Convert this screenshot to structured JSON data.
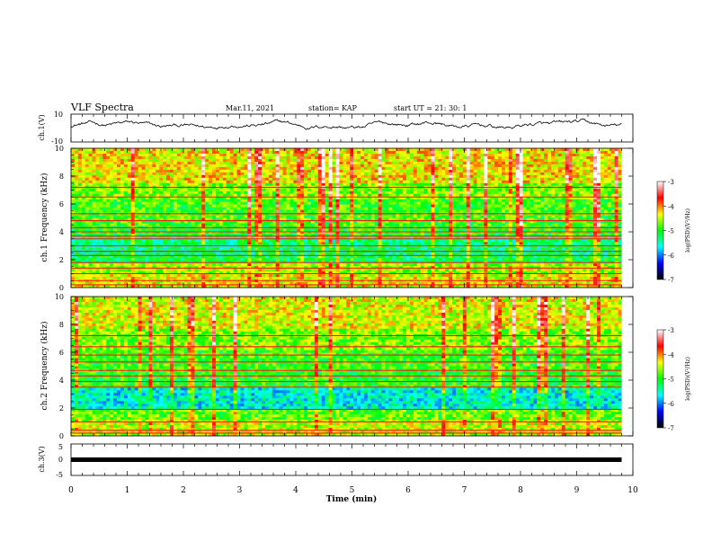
{
  "header": {
    "title": "VLF Spectra",
    "date": "Mar.11, 2021",
    "station": "station= KAP",
    "start": "start  UT =   21: 30: 1"
  },
  "colorbar": {
    "label": "log(PSD)(V²/Hz)",
    "ticks": [
      "-3",
      "-4",
      "-5",
      "-6",
      "-7"
    ],
    "stops": [
      "#ffffff",
      "#ff0000",
      "#ffff00",
      "#00ff00",
      "#00ffff",
      "#0000ff",
      "#000000"
    ]
  },
  "chart_data": [
    {
      "type": "line",
      "name": "ch1-waveform",
      "ylabel": "ch.1(V)",
      "ylim": [
        -10,
        10
      ],
      "ytick_labels": [
        "10",
        "-10"
      ],
      "xlim": [
        0,
        10
      ],
      "x_end": 9.8,
      "color": "#000000",
      "y_mean": 2,
      "y_swing": 3
    },
    {
      "type": "heatmap",
      "name": "ch1-spectrogram",
      "ylabel": "ch.1 Frequency (kHz)",
      "ylim": [
        0,
        10
      ],
      "ytick_labels": [
        "0",
        "2",
        "4",
        "6",
        "8",
        "10"
      ],
      "xlim": [
        0,
        10
      ],
      "x_end": 9.8,
      "zlim": [
        -7,
        -3
      ],
      "lines_khz": [
        0.2,
        0.5,
        1.0,
        1.4,
        1.8,
        2.3,
        2.6,
        3.0,
        3.5,
        3.7,
        4.0,
        4.3,
        4.8,
        5.3,
        6.5,
        7.2
      ],
      "bands": [
        {
          "from": 0.0,
          "to": 0.9,
          "level": -4.4
        },
        {
          "from": 0.9,
          "to": 1.7,
          "level": -4.6
        },
        {
          "from": 1.7,
          "to": 2.4,
          "level": -5.2
        },
        {
          "from": 2.4,
          "to": 3.6,
          "level": -5.3
        },
        {
          "from": 3.6,
          "to": 4.4,
          "level": -5.0
        },
        {
          "from": 4.4,
          "to": 6.3,
          "level": -4.9
        },
        {
          "from": 6.3,
          "to": 7.5,
          "level": -4.7
        },
        {
          "from": 7.5,
          "to": 10.0,
          "level": -4.3
        }
      ]
    },
    {
      "type": "heatmap",
      "name": "ch2-spectrogram",
      "ylabel": "ch.2 Frequency (kHz)",
      "ylim": [
        0,
        10
      ],
      "ytick_labels": [
        "0",
        "2",
        "4",
        "6",
        "8",
        "10"
      ],
      "xlim": [
        0,
        10
      ],
      "x_end": 9.8,
      "zlim": [
        -7,
        -3
      ],
      "lines_khz": [
        0.2,
        0.4,
        1.0,
        1.9,
        3.5,
        3.9,
        4.3,
        4.7,
        5.3,
        5.8,
        6.4,
        7.2
      ],
      "bands": [
        {
          "from": 0.0,
          "to": 1.1,
          "level": -4.5
        },
        {
          "from": 1.1,
          "to": 2.0,
          "level": -4.8
        },
        {
          "from": 2.0,
          "to": 3.4,
          "level": -5.6
        },
        {
          "from": 3.4,
          "to": 4.6,
          "level": -5.0
        },
        {
          "from": 4.6,
          "to": 6.2,
          "level": -4.9
        },
        {
          "from": 6.2,
          "to": 7.6,
          "level": -4.7
        },
        {
          "from": 7.6,
          "to": 10.0,
          "level": -4.4
        }
      ]
    },
    {
      "type": "line",
      "name": "ch3-waveform",
      "ylabel": "ch.3(V)",
      "ylim": [
        -5,
        5
      ],
      "ytick_labels": [
        "5",
        "0",
        "-5"
      ],
      "xlim": [
        0,
        10
      ],
      "x_end": 9.8,
      "xlabel": "Time  (min)",
      "xtick_labels": [
        "0",
        "1",
        "2",
        "3",
        "4",
        "5",
        "6",
        "7",
        "8",
        "9",
        "10"
      ],
      "value": 0,
      "color": "#000000"
    }
  ]
}
